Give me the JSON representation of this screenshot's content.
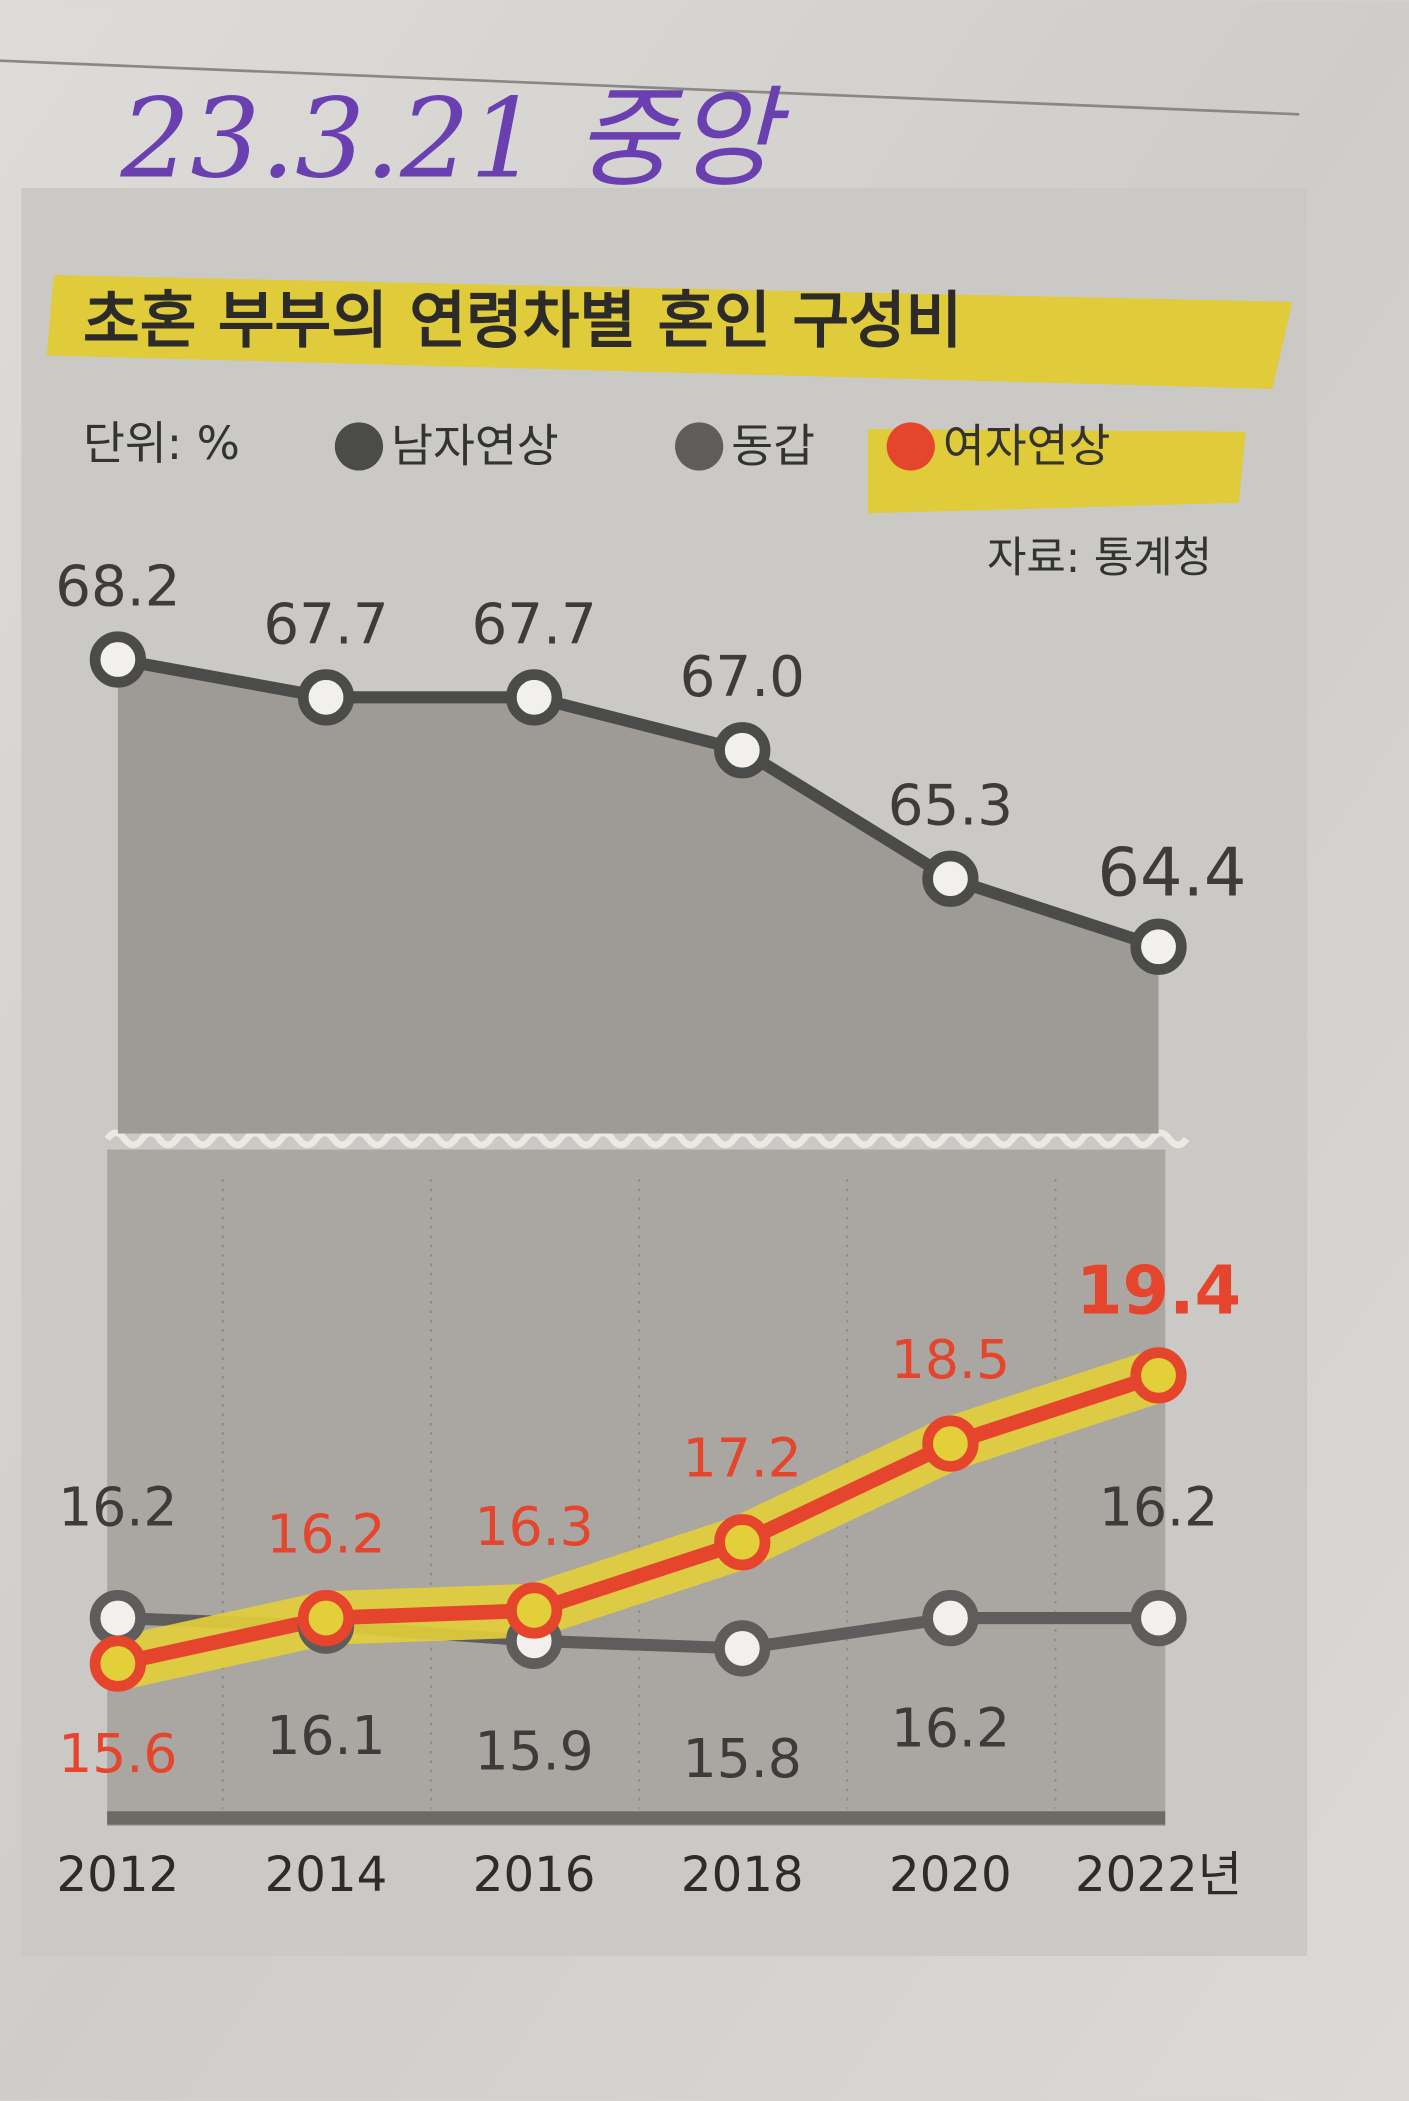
{
  "chart_data": {
    "type": "line",
    "annotation": "23.3.21 중앙",
    "title": "초혼 부부의 연령차별 혼인 구성비",
    "subtitle": "단위: %",
    "source": "자료: 통계청",
    "categories": [
      "2012",
      "2014",
      "2016",
      "2018",
      "2020",
      "2022년"
    ],
    "series": [
      {
        "name": "남자연상",
        "color": "#4b4b49",
        "axis": "y2",
        "values": [
          68.2,
          67.7,
          67.7,
          67.0,
          65.3,
          64.4
        ],
        "value_labels": [
          "68.2",
          "67.7",
          "67.7",
          "67.0",
          "65.3",
          "64.4"
        ]
      },
      {
        "name": "동갑",
        "color": "#5e5d5b",
        "values": [
          16.2,
          16.1,
          15.9,
          15.8,
          16.2,
          16.2
        ]
      },
      {
        "name": "여자연상",
        "color": "#e5452c",
        "values": [
          15.6,
          16.2,
          16.3,
          17.2,
          18.5,
          19.4
        ]
      }
    ],
    "ylim": [
      13.6,
      22.2
    ],
    "y2lim": [
      62.0,
      69.3
    ],
    "legend": "top-left",
    "highlight_color": "#e3cf3a"
  }
}
